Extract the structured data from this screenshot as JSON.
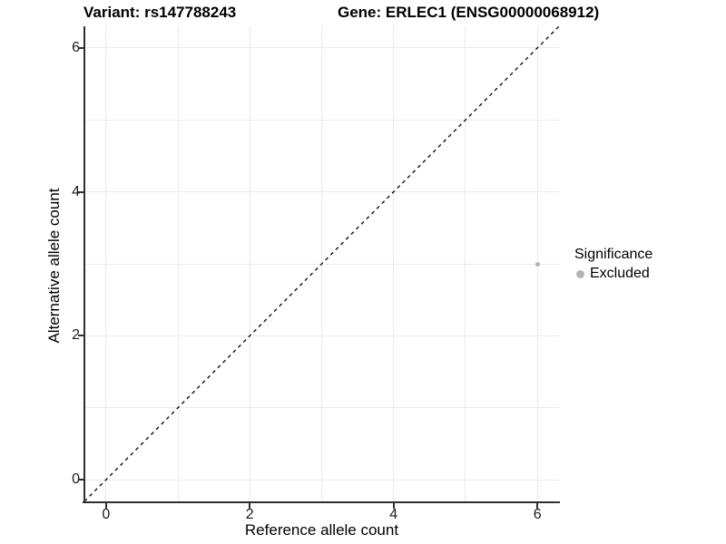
{
  "titles": {
    "left": "Variant: rs147788243",
    "right": "Gene: ERLEC1 (ENSG00000068912)"
  },
  "colors": {
    "background": "#ffffff",
    "gridline": "#ebebeb",
    "axis": "#2f2f2f",
    "point": "#b5b5b5",
    "identity_line": "#000000",
    "text": "#000000"
  },
  "chart_data": {
    "type": "scatter",
    "title_left": "Variant: rs147788243",
    "title_right": "Gene: ERLEC1 (ENSG00000068912)",
    "xlabel": "Reference allele count",
    "ylabel": "Alternative allele count",
    "xlim": [
      -0.3,
      6.3
    ],
    "ylim": [
      -0.3,
      6.3
    ],
    "xticks": [
      0,
      2,
      4,
      6
    ],
    "yticks": [
      0,
      2,
      4,
      6
    ],
    "gridlines_x": [
      0,
      1,
      2,
      3,
      4,
      5,
      6
    ],
    "gridlines_y": [
      0,
      1,
      2,
      3,
      4,
      5,
      6
    ],
    "grid": true,
    "identity_line": {
      "style": "dashed",
      "x1": -0.3,
      "y1": -0.3,
      "x2": 6.3,
      "y2": 6.3
    },
    "series": [
      {
        "name": "Excluded",
        "color": "#b5b5b5",
        "points": [
          {
            "x": 6,
            "y": 3
          }
        ]
      }
    ],
    "legend": {
      "position": "right",
      "title": "Significance",
      "entries": [
        {
          "label": "Excluded",
          "color": "#b5b5b5"
        }
      ]
    }
  }
}
